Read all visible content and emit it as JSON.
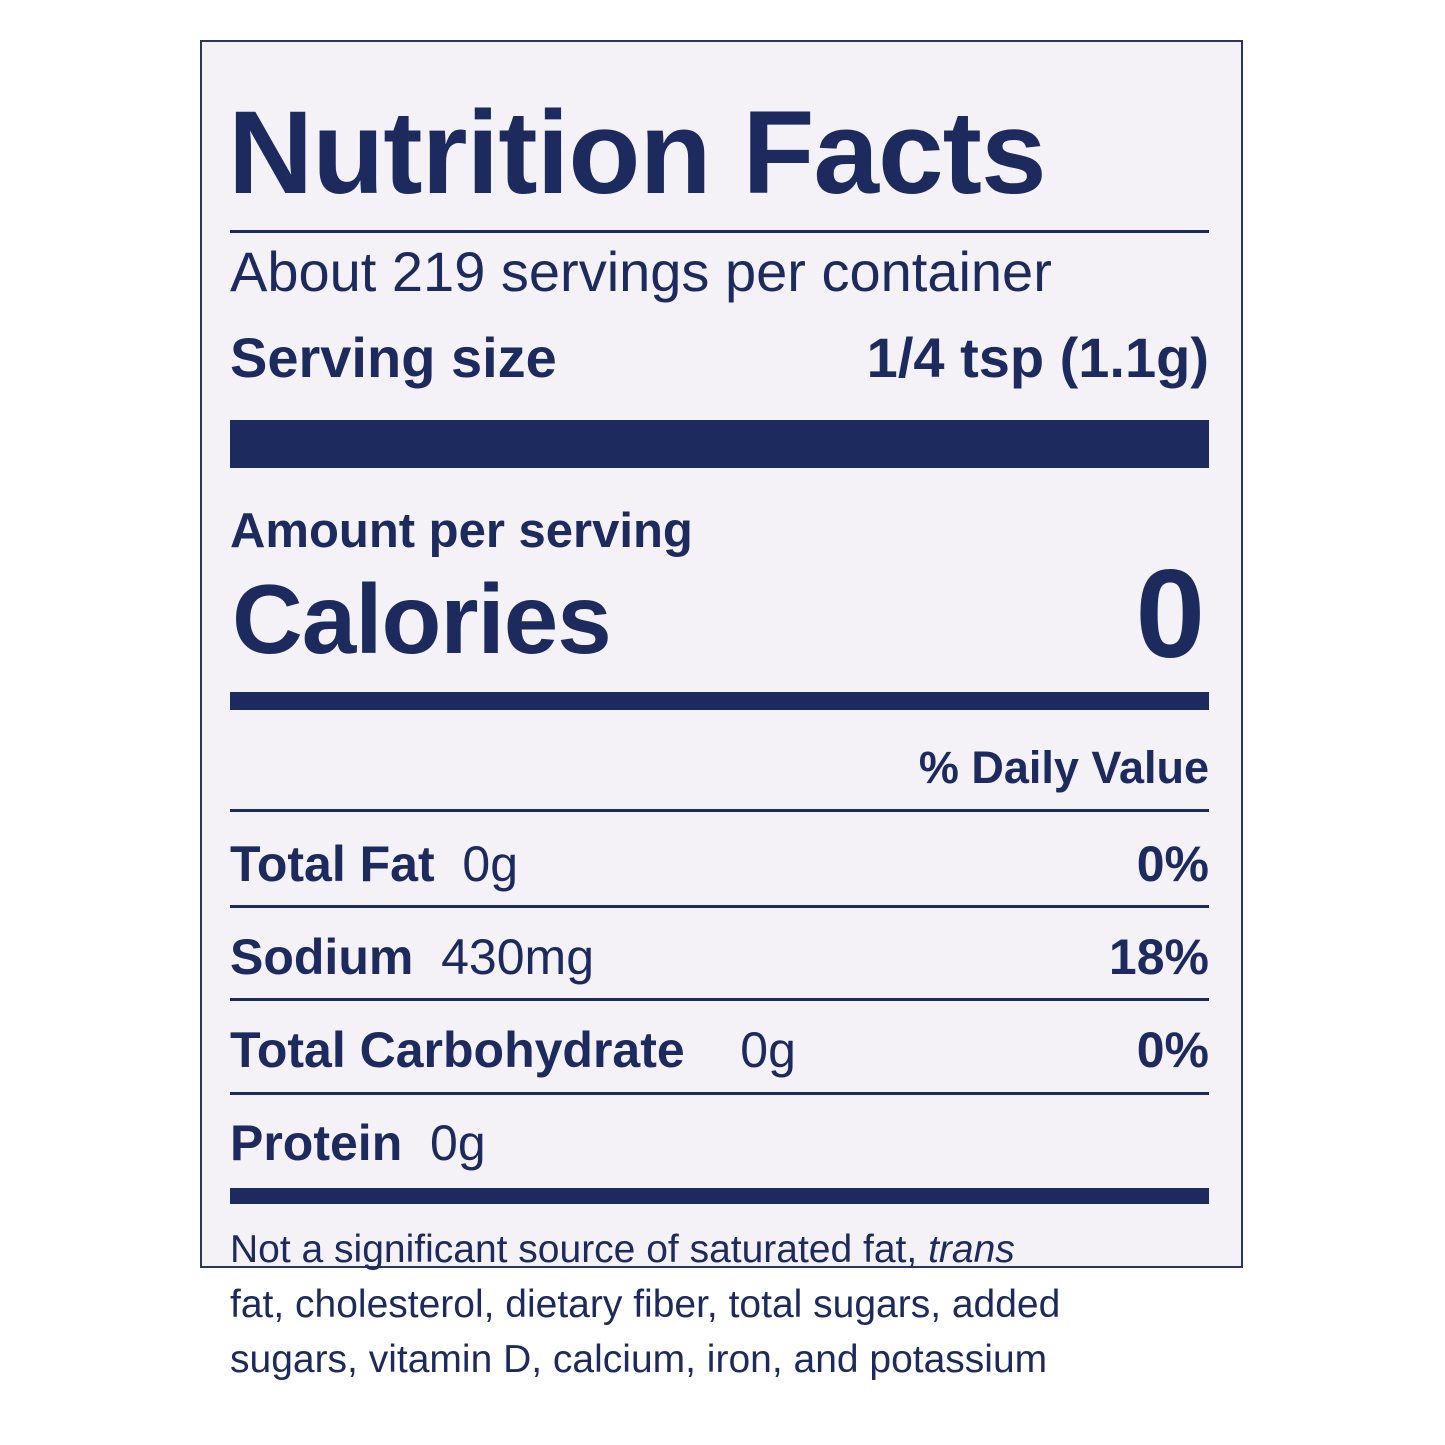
{
  "header": {
    "title": "Nutrition Facts"
  },
  "servings": {
    "per_container": "About 219 servings per container",
    "size_label": "Serving size",
    "size_value": "1/4 tsp (1.1g)"
  },
  "calories": {
    "amount_label": "Amount per serving",
    "label": "Calories",
    "value": "0"
  },
  "daily_value_header": "% Daily Value",
  "nutrients": [
    {
      "name": "Total Fat",
      "amount": "0g",
      "dv": "0%"
    },
    {
      "name": "Sodium",
      "amount": "430mg",
      "dv": "18%"
    },
    {
      "name": "Total Carbohydrate",
      "amount": "0g",
      "dv": "0%"
    },
    {
      "name": "Protein",
      "amount": "0g"
    }
  ],
  "footnote": {
    "line1": "Not a significant source of saturated fat,",
    "line1_italic": "trans",
    "line2": "fat, cholesterol, dietary fiber, total sugars, added",
    "line3": "sugars, vitamin D, calcium, iron, and potassium"
  }
}
